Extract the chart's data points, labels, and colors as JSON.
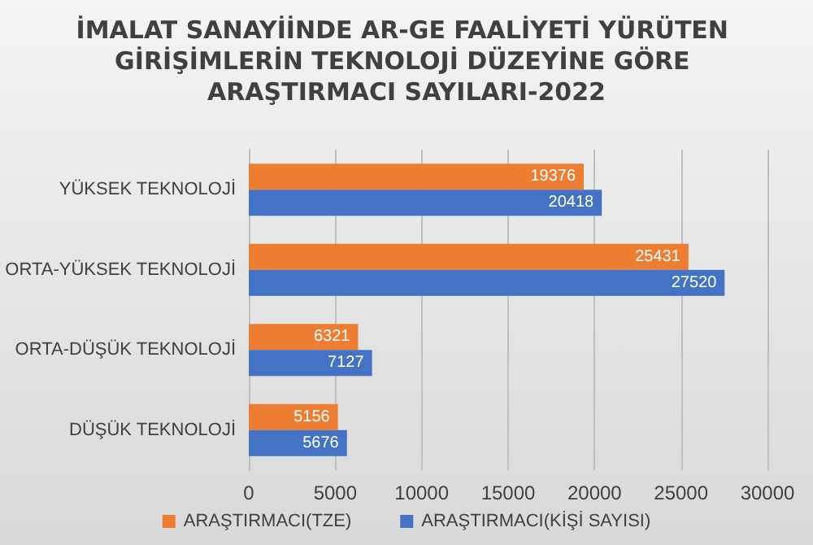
{
  "chart_data": {
    "type": "bar",
    "orientation": "horizontal",
    "title": "İMALAT SANAYİİNDE AR-GE FAALİYETİ YÜRÜTEN GİRİŞİMLERİN TEKNOLOJİ DÜZEYİNE GÖRE ARAŞTIRMACI SAYILARI-2022",
    "categories": [
      "YÜKSEK TEKNOLOJİ",
      "ORTA-YÜKSEK TEKNOLOJİ",
      "ORTA-DÜŞÜK TEKNOLOJİ",
      "DÜŞÜK TEKNOLOJİ"
    ],
    "series": [
      {
        "name": "ARAŞTIRMACI(TZE)",
        "color": "#ed7d31",
        "values": [
          19376,
          25431,
          6321,
          5156
        ]
      },
      {
        "name": "ARAŞTIRMACI(KİŞİ SAYISI)",
        "color": "#4472c4",
        "values": [
          20418,
          27520,
          7127,
          5676
        ]
      }
    ],
    "xlim": [
      0,
      30000
    ],
    "xticks": [
      0,
      5000,
      10000,
      15000,
      20000,
      25000,
      30000
    ],
    "grid": "x",
    "legend": "bottom",
    "data_labels": true
  }
}
